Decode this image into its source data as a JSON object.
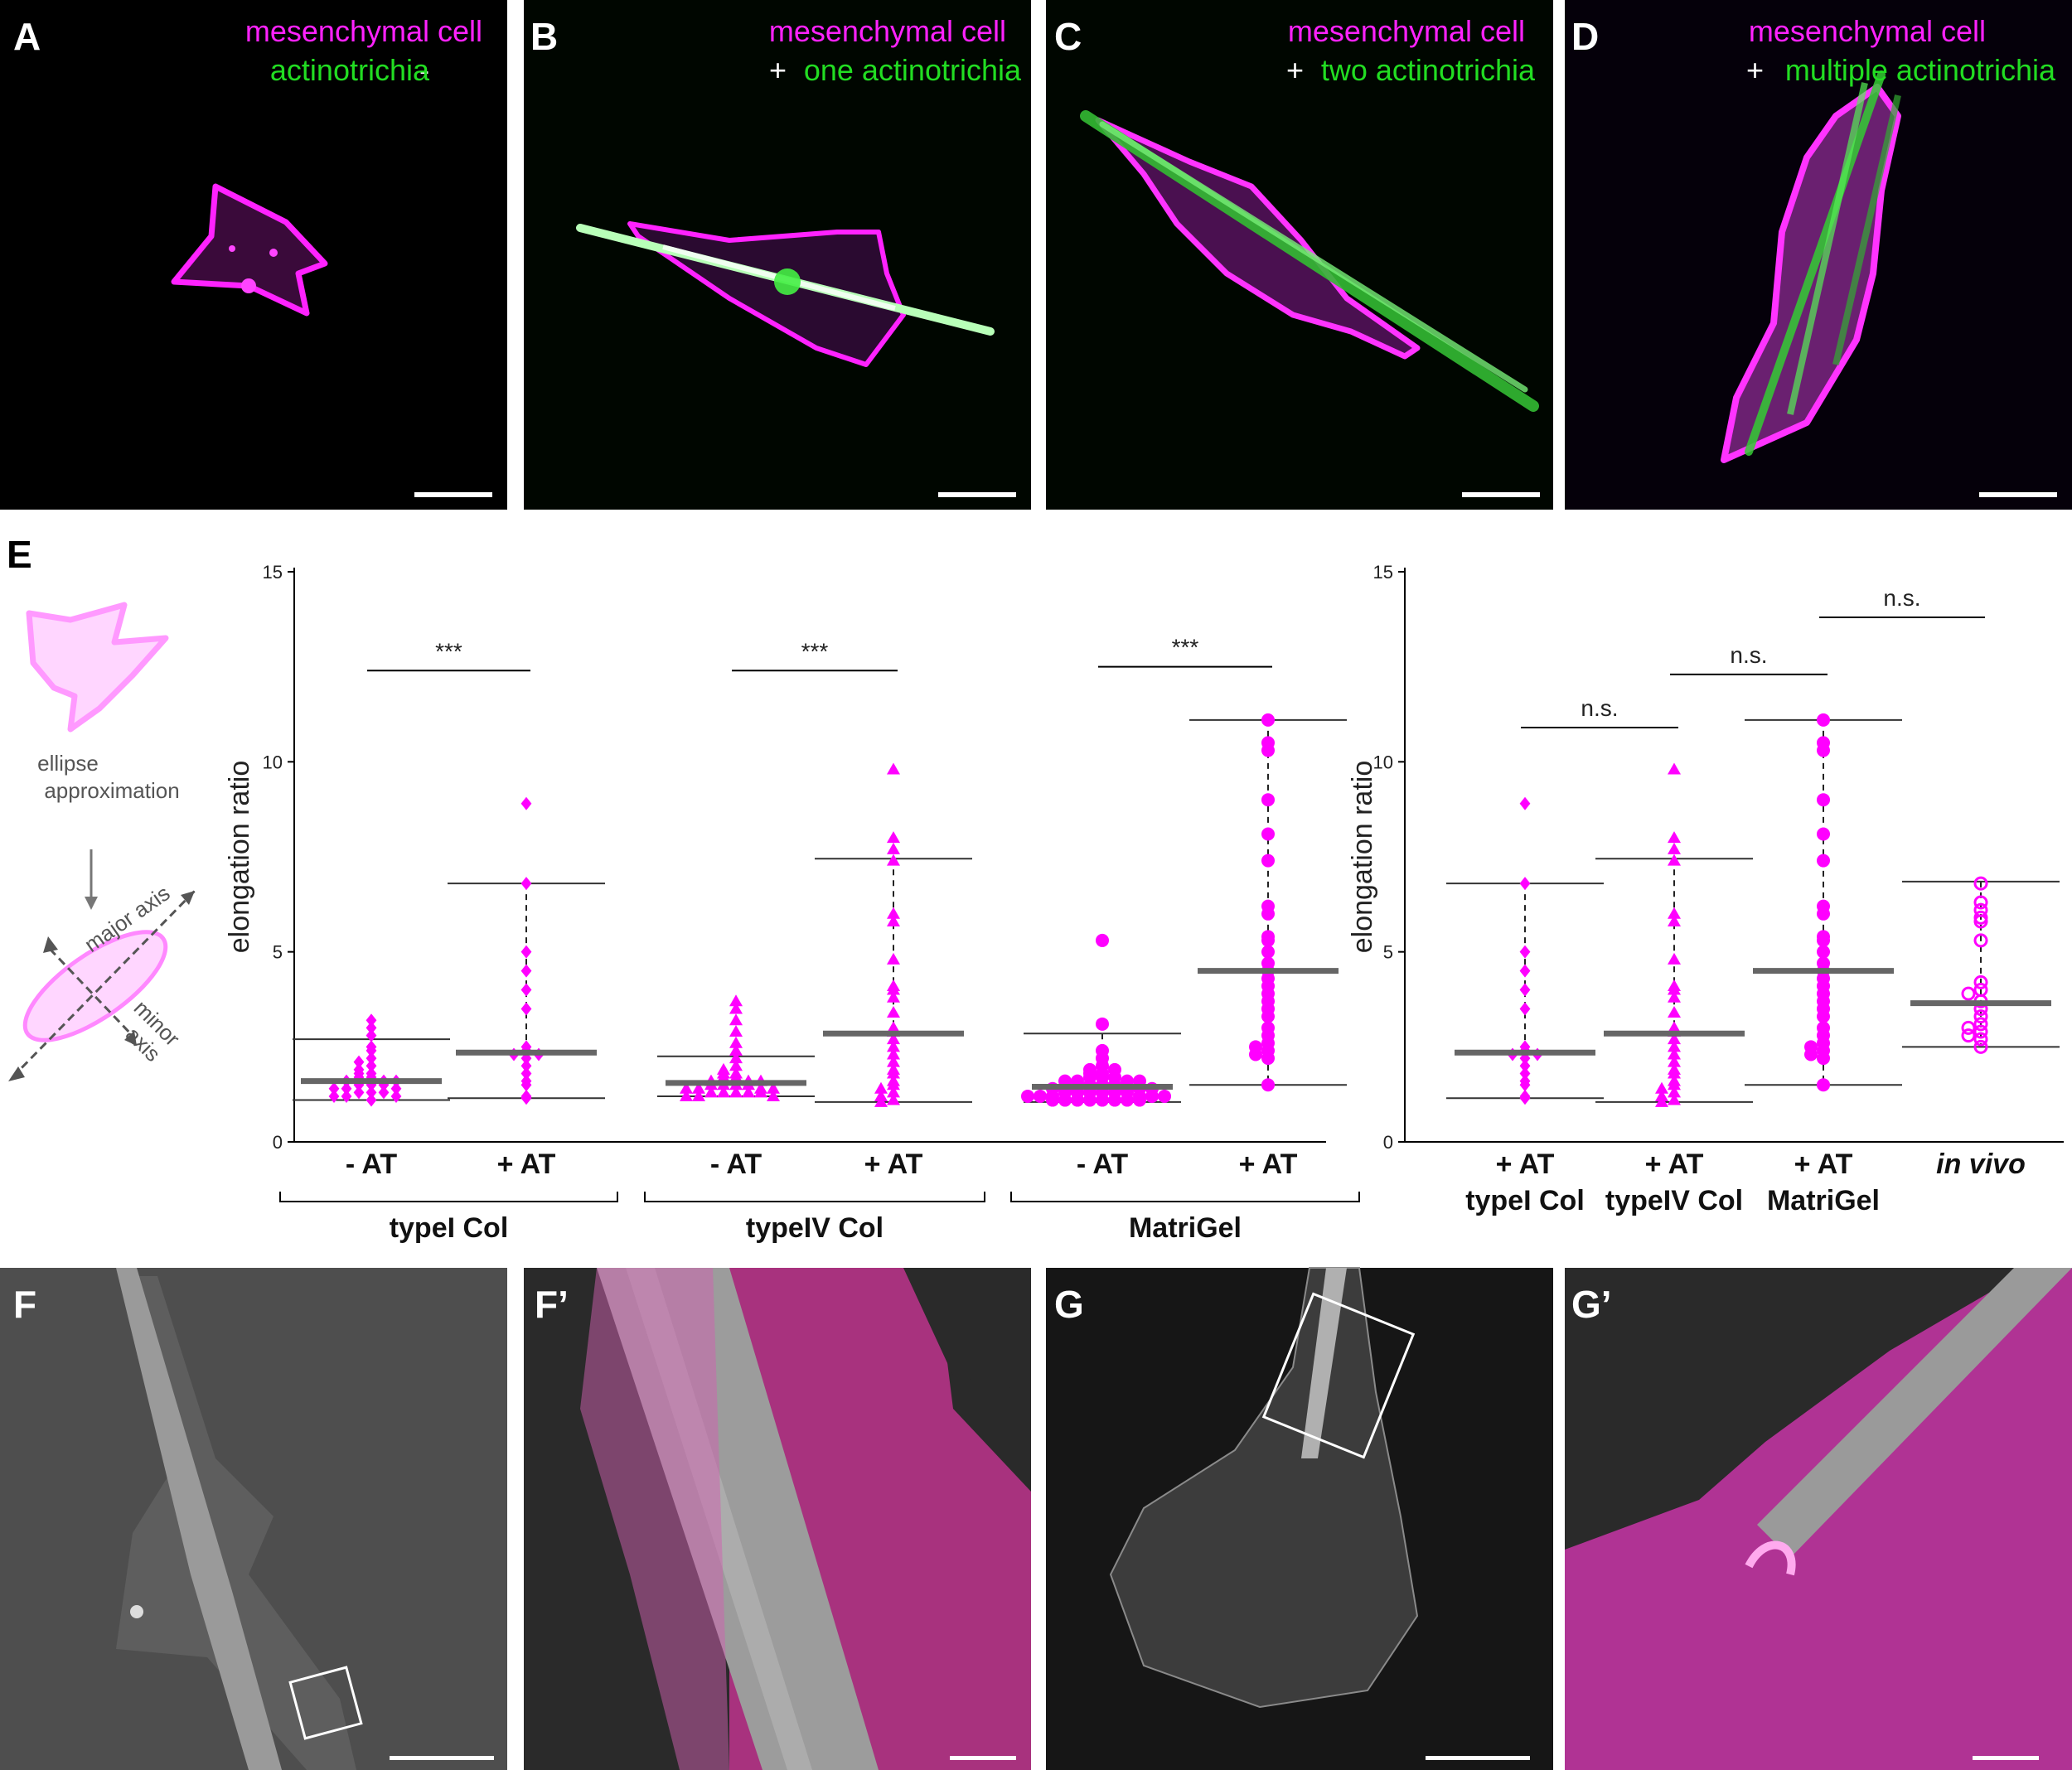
{
  "panels_top": [
    {
      "letter": "A",
      "line1": "mesenchymal cell",
      "sign": "-",
      "line2": "actinotrichia"
    },
    {
      "letter": "B",
      "line1": "mesenchymal cell",
      "sign": "+",
      "line2": "one actinotrichia"
    },
    {
      "letter": "C",
      "line1": "mesenchymal cell",
      "sign": "+",
      "line2": "two actinotrichia"
    },
    {
      "letter": "D",
      "line1": "mesenchymal cell",
      "sign": "+",
      "line2": "multiple actinotrichia"
    }
  ],
  "panels_bottom": [
    {
      "letter": "F"
    },
    {
      "letter": "F’"
    },
    {
      "letter": "G"
    },
    {
      "letter": "G’"
    }
  ],
  "panel_e": {
    "letter": "E",
    "schematic": {
      "line1": "ellipse",
      "line2": "approximation",
      "major": "major axis",
      "minor_1": "minor",
      "minor_2": "axis"
    }
  },
  "colors": {
    "magenta": "#ff00ff",
    "green": "#22dd22",
    "median_bar": "#666666"
  },
  "chart_data": [
    {
      "type": "scatter",
      "ylabel": "elongation ratio",
      "ylim": [
        0,
        15
      ],
      "yticks": [
        0,
        5,
        10,
        15
      ],
      "categories": [
        "- AT",
        "+ AT",
        "- AT",
        "+ AT",
        "- AT",
        "+ AT"
      ],
      "groups": [
        {
          "label": "typeI Col",
          "members": [
            0,
            1
          ]
        },
        {
          "label": "typeIV Col",
          "members": [
            2,
            3
          ]
        },
        {
          "label": "MatriGel",
          "members": [
            4,
            5
          ]
        }
      ],
      "series": [
        {
          "marker": "diamond",
          "median": 1.6,
          "min": 1.1,
          "max": 2.7,
          "values": [
            3.2,
            3.0,
            2.8,
            2.5,
            2.4,
            2.2,
            2.1,
            2.0,
            1.9,
            1.8,
            1.8,
            1.7,
            1.7,
            1.6,
            1.6,
            1.6,
            1.5,
            1.5,
            1.5,
            1.4,
            1.4,
            1.4,
            1.3,
            1.3,
            1.3,
            1.2,
            1.2,
            1.2,
            1.1
          ]
        },
        {
          "marker": "diamond",
          "median": 2.35,
          "min": 1.15,
          "max": 6.8,
          "values": [
            8.9,
            6.8,
            5.0,
            4.5,
            4.0,
            3.5,
            2.5,
            2.4,
            2.3,
            2.3,
            2.2,
            2.0,
            1.8,
            1.6,
            1.5,
            1.2,
            1.15
          ]
        },
        {
          "marker": "triangle",
          "median": 1.55,
          "min": 1.2,
          "max": 2.25,
          "values": [
            3.7,
            3.5,
            3.2,
            2.9,
            2.6,
            2.4,
            2.2,
            2.0,
            1.9,
            1.8,
            1.8,
            1.7,
            1.7,
            1.6,
            1.6,
            1.6,
            1.5,
            1.5,
            1.5,
            1.5,
            1.4,
            1.4,
            1.4,
            1.4,
            1.3,
            1.3,
            1.3,
            1.3,
            1.3,
            1.2,
            1.2,
            1.2
          ]
        },
        {
          "marker": "triangle",
          "median": 2.85,
          "min": 1.05,
          "max": 7.45,
          "values": [
            9.8,
            8.0,
            7.7,
            7.4,
            6.0,
            5.8,
            4.8,
            4.1,
            4.0,
            3.8,
            3.4,
            3.0,
            2.9,
            2.7,
            2.5,
            2.3,
            2.1,
            1.9,
            1.8,
            1.6,
            1.5,
            1.4,
            1.3,
            1.2,
            1.1,
            1.05
          ]
        },
        {
          "marker": "circle",
          "median": 1.45,
          "min": 1.05,
          "max": 2.85,
          "values": [
            5.3,
            3.1,
            2.4,
            2.2,
            2.0,
            1.9,
            1.9,
            1.8,
            1.8,
            1.7,
            1.7,
            1.7,
            1.6,
            1.6,
            1.6,
            1.6,
            1.5,
            1.5,
            1.5,
            1.5,
            1.4,
            1.4,
            1.4,
            1.4,
            1.4,
            1.3,
            1.3,
            1.3,
            1.3,
            1.3,
            1.3,
            1.2,
            1.2,
            1.2,
            1.2,
            1.2,
            1.2,
            1.1,
            1.1,
            1.1,
            1.1,
            1.1,
            1.1,
            1.1,
            1.1
          ]
        },
        {
          "marker": "circle",
          "median": 4.5,
          "min": 1.5,
          "max": 11.1,
          "values": [
            11.1,
            10.5,
            10.3,
            9.0,
            8.1,
            7.4,
            6.2,
            6.0,
            5.4,
            5.3,
            5.0,
            4.7,
            4.5,
            4.3,
            4.1,
            3.9,
            3.7,
            3.5,
            3.3,
            3.0,
            2.8,
            2.6,
            2.5,
            2.4,
            2.3,
            2.2,
            1.5
          ]
        }
      ],
      "significance": [
        {
          "pair": [
            0,
            1
          ],
          "label": "***",
          "y": 12.4
        },
        {
          "pair": [
            2,
            3
          ],
          "label": "***",
          "y": 12.4
        },
        {
          "pair": [
            4,
            5
          ],
          "label": "***",
          "y": 12.5
        }
      ]
    },
    {
      "type": "scatter",
      "ylabel": "elongation ratio",
      "ylim": [
        0,
        15
      ],
      "yticks": [
        0,
        5,
        10,
        15
      ],
      "categories": [
        "+ AT",
        "+ AT",
        "+ AT",
        "in vivo"
      ],
      "sublabels": [
        "typeI Col",
        "typeIV Col",
        "MatriGel",
        ""
      ],
      "series": [
        {
          "marker": "diamond",
          "median": 2.35,
          "min": 1.15,
          "max": 6.8,
          "values": [
            8.9,
            6.8,
            5.0,
            4.5,
            4.0,
            3.5,
            2.5,
            2.4,
            2.3,
            2.3,
            2.2,
            2.0,
            1.8,
            1.6,
            1.5,
            1.2,
            1.15
          ]
        },
        {
          "marker": "triangle",
          "median": 2.85,
          "min": 1.05,
          "max": 7.45,
          "values": [
            9.8,
            8.0,
            7.7,
            7.4,
            6.0,
            5.8,
            4.8,
            4.1,
            4.0,
            3.8,
            3.4,
            3.0,
            2.9,
            2.7,
            2.5,
            2.3,
            2.1,
            1.9,
            1.8,
            1.6,
            1.5,
            1.4,
            1.3,
            1.2,
            1.1,
            1.05
          ]
        },
        {
          "marker": "circle",
          "median": 4.5,
          "min": 1.5,
          "max": 11.1,
          "values": [
            11.1,
            10.5,
            10.3,
            9.0,
            8.1,
            7.4,
            6.2,
            6.0,
            5.4,
            5.3,
            5.0,
            4.7,
            4.5,
            4.3,
            4.1,
            3.9,
            3.7,
            3.5,
            3.3,
            3.0,
            2.8,
            2.6,
            2.5,
            2.4,
            2.3,
            2.2,
            1.5
          ]
        },
        {
          "marker": "open-circle",
          "median": 3.65,
          "min": 2.5,
          "max": 6.85,
          "values": [
            6.8,
            6.3,
            6.1,
            5.9,
            5.8,
            5.3,
            4.2,
            4.0,
            3.9,
            3.7,
            3.5,
            3.3,
            3.1,
            3.0,
            2.9,
            2.8,
            2.7,
            2.5
          ]
        }
      ],
      "significance": [
        {
          "pair": [
            0,
            1
          ],
          "label": "n.s.",
          "y": 10.9
        },
        {
          "pair": [
            1,
            2
          ],
          "label": "n.s.",
          "y": 12.3
        },
        {
          "pair": [
            2,
            3
          ],
          "label": "n.s.",
          "y": 13.8
        }
      ]
    }
  ]
}
